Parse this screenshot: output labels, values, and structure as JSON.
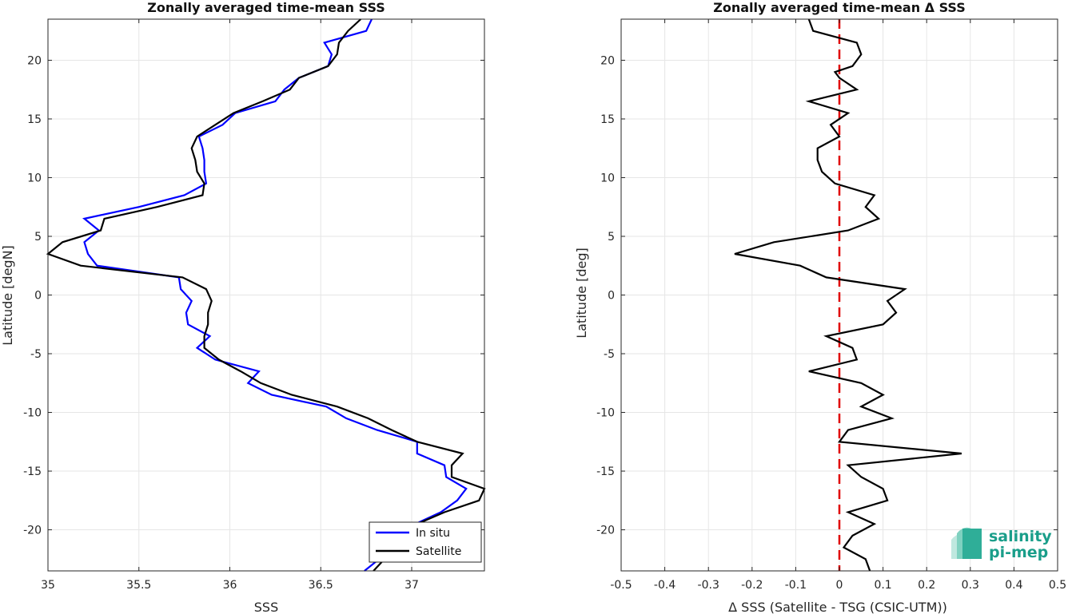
{
  "chart_data": [
    {
      "type": "line",
      "title": "Zonally averaged time-mean SSS",
      "xlabel": "SSS",
      "ylabel": "Latitude [degN]",
      "xlim": [
        35,
        37.4
      ],
      "ylim": [
        -23.5,
        23.5
      ],
      "xticks": [
        35,
        35.5,
        36,
        36.5,
        37
      ],
      "xtick_labels": [
        "35",
        "35.5",
        "36",
        "36.5",
        "37"
      ],
      "yticks": [
        -20,
        -15,
        -10,
        -5,
        0,
        5,
        10,
        15,
        20
      ],
      "ytick_labels": [
        "-20",
        "-15",
        "-10",
        "-5",
        "0",
        "5",
        "10",
        "15",
        "20"
      ],
      "grid": true,
      "legend": {
        "placement": "bottom-right"
      },
      "series": [
        {
          "name": "In situ",
          "color": "#0000ff",
          "points": [
            [
              36.78,
              23.5
            ],
            [
              36.75,
              22.5
            ],
            [
              36.52,
              21.5
            ],
            [
              36.56,
              20.5
            ],
            [
              36.54,
              19.5
            ],
            [
              36.38,
              18.5
            ],
            [
              36.3,
              17.5
            ],
            [
              36.25,
              16.5
            ],
            [
              36.03,
              15.5
            ],
            [
              35.96,
              14.5
            ],
            [
              35.83,
              13.5
            ],
            [
              35.85,
              12.5
            ],
            [
              35.86,
              11.5
            ],
            [
              35.86,
              10.5
            ],
            [
              35.87,
              9.5
            ],
            [
              35.75,
              8.5
            ],
            [
              35.5,
              7.5
            ],
            [
              35.2,
              6.5
            ],
            [
              35.28,
              5.5
            ],
            [
              35.2,
              4.5
            ],
            [
              35.22,
              3.5
            ],
            [
              35.27,
              2.5
            ],
            [
              35.72,
              1.5
            ],
            [
              35.73,
              0.5
            ],
            [
              35.79,
              -0.5
            ],
            [
              35.76,
              -1.5
            ],
            [
              35.77,
              -2.5
            ],
            [
              35.89,
              -3.5
            ],
            [
              35.82,
              -4.5
            ],
            [
              35.92,
              -5.5
            ],
            [
              36.16,
              -6.5
            ],
            [
              36.1,
              -7.5
            ],
            [
              36.23,
              -8.5
            ],
            [
              36.53,
              -9.5
            ],
            [
              36.64,
              -10.5
            ],
            [
              36.81,
              -11.5
            ],
            [
              37.03,
              -12.5
            ],
            [
              37.03,
              -13.5
            ],
            [
              37.18,
              -14.5
            ],
            [
              37.19,
              -15.5
            ],
            [
              37.3,
              -16.5
            ],
            [
              37.25,
              -17.5
            ],
            [
              37.16,
              -18.5
            ],
            [
              37.02,
              -19.5
            ],
            [
              36.9,
              -20.5
            ],
            [
              36.87,
              -21.5
            ],
            [
              36.82,
              -22.5
            ],
            [
              36.74,
              -23.5
            ]
          ]
        },
        {
          "name": "Satellite",
          "color": "#000000",
          "points": [
            [
              36.72,
              23.5
            ],
            [
              36.65,
              22.5
            ],
            [
              36.6,
              21.5
            ],
            [
              36.59,
              20.5
            ],
            [
              36.54,
              19.5
            ],
            [
              36.38,
              18.5
            ],
            [
              36.33,
              17.5
            ],
            [
              36.18,
              16.5
            ],
            [
              36.02,
              15.5
            ],
            [
              35.92,
              14.5
            ],
            [
              35.82,
              13.5
            ],
            [
              35.79,
              12.5
            ],
            [
              35.81,
              11.5
            ],
            [
              35.82,
              10.5
            ],
            [
              35.86,
              9.5
            ],
            [
              35.85,
              8.5
            ],
            [
              35.6,
              7.5
            ],
            [
              35.31,
              6.5
            ],
            [
              35.29,
              5.5
            ],
            [
              35.08,
              4.5
            ],
            [
              35.0,
              3.5
            ],
            [
              35.18,
              2.5
            ],
            [
              35.74,
              1.5
            ],
            [
              35.87,
              0.5
            ],
            [
              35.9,
              -0.5
            ],
            [
              35.88,
              -1.5
            ],
            [
              35.88,
              -2.5
            ],
            [
              35.86,
              -3.5
            ],
            [
              35.86,
              -4.5
            ],
            [
              35.94,
              -5.5
            ],
            [
              36.06,
              -6.5
            ],
            [
              36.17,
              -7.5
            ],
            [
              36.34,
              -8.5
            ],
            [
              36.59,
              -9.5
            ],
            [
              36.76,
              -10.5
            ],
            [
              36.89,
              -11.5
            ],
            [
              37.03,
              -12.5
            ],
            [
              37.28,
              -13.5
            ],
            [
              37.22,
              -14.5
            ],
            [
              37.22,
              -15.5
            ],
            [
              37.4,
              -16.5
            ],
            [
              37.37,
              -17.5
            ],
            [
              37.18,
              -18.5
            ],
            [
              37.03,
              -19.5
            ],
            [
              36.92,
              -20.5
            ],
            [
              36.91,
              -21.5
            ],
            [
              36.85,
              -22.5
            ],
            [
              36.79,
              -23.5
            ]
          ]
        }
      ]
    },
    {
      "type": "line",
      "title": "Zonally averaged time-mean Δ SSS",
      "xlabel": "Δ SSS (Satellite - TSG (CSIC-UTM))",
      "ylabel": "Latitude [deg]",
      "xlim": [
        -0.5,
        0.5
      ],
      "ylim": [
        -23.5,
        23.5
      ],
      "xticks": [
        -0.5,
        -0.4,
        -0.3,
        -0.2,
        -0.1,
        0,
        0.1,
        0.2,
        0.3,
        0.4,
        0.5
      ],
      "xtick_labels": [
        "-0.5",
        "-0.4",
        "-0.3",
        "-0.2",
        "-0.1",
        "0",
        "0.1",
        "0.2",
        "0.3",
        "0.4",
        "0.5"
      ],
      "yticks": [
        -20,
        -15,
        -10,
        -5,
        0,
        5,
        10,
        15,
        20
      ],
      "ytick_labels": [
        "-20",
        "-15",
        "-10",
        "-5",
        "0",
        "5",
        "10",
        "15",
        "20"
      ],
      "grid": true,
      "reference_line": {
        "x": 0,
        "color": "#e00000",
        "style": "dashed"
      },
      "series": [
        {
          "color": "#000000",
          "points": [
            [
              -0.07,
              23.5
            ],
            [
              -0.06,
              22.5
            ],
            [
              0.04,
              21.5
            ],
            [
              0.05,
              20.5
            ],
            [
              0.03,
              19.5
            ],
            [
              -0.01,
              19.0
            ],
            [
              0.0,
              18.5
            ],
            [
              0.04,
              17.5
            ],
            [
              -0.07,
              16.5
            ],
            [
              0.02,
              15.5
            ],
            [
              -0.02,
              14.5
            ],
            [
              0.0,
              13.5
            ],
            [
              -0.05,
              12.5
            ],
            [
              -0.05,
              11.5
            ],
            [
              -0.04,
              10.5
            ],
            [
              -0.01,
              9.5
            ],
            [
              0.08,
              8.5
            ],
            [
              0.06,
              7.5
            ],
            [
              0.09,
              6.5
            ],
            [
              0.02,
              5.5
            ],
            [
              -0.15,
              4.5
            ],
            [
              -0.24,
              3.5
            ],
            [
              -0.09,
              2.5
            ],
            [
              -0.03,
              1.5
            ],
            [
              0.15,
              0.5
            ],
            [
              0.11,
              -0.5
            ],
            [
              0.13,
              -1.5
            ],
            [
              0.1,
              -2.5
            ],
            [
              -0.03,
              -3.5
            ],
            [
              0.03,
              -4.5
            ],
            [
              0.04,
              -5.5
            ],
            [
              -0.07,
              -6.5
            ],
            [
              0.05,
              -7.5
            ],
            [
              0.1,
              -8.5
            ],
            [
              0.05,
              -9.5
            ],
            [
              0.12,
              -10.5
            ],
            [
              0.02,
              -11.5
            ],
            [
              0.0,
              -12.5
            ],
            [
              0.28,
              -13.5
            ],
            [
              0.02,
              -14.5
            ],
            [
              0.05,
              -15.5
            ],
            [
              0.1,
              -16.5
            ],
            [
              0.11,
              -17.5
            ],
            [
              0.02,
              -18.5
            ],
            [
              0.08,
              -19.5
            ],
            [
              0.03,
              -20.5
            ],
            [
              0.01,
              -21.5
            ],
            [
              0.06,
              -22.5
            ],
            [
              0.07,
              -23.5
            ]
          ]
        }
      ]
    }
  ],
  "logo": {
    "line1": "salinity",
    "line2": "pi-mep",
    "color": "#1a9e8a"
  }
}
